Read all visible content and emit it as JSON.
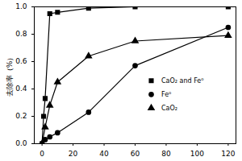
{
  "chart_data": {
    "type": "line",
    "y_label": "去除率（%）",
    "xlim": [
      -5,
      125
    ],
    "xticks": [
      0,
      20,
      40,
      60,
      80,
      100,
      120
    ],
    "ylim": [
      0,
      1.0
    ],
    "yticks": [
      {
        "value": 0,
        "label": "0.0"
      },
      0.2,
      0.4,
      0.6,
      0.8,
      {
        "value": 1,
        "label": "1.0"
      }
    ],
    "legend": "center right",
    "series": [
      {
        "name": "CaO₂ and Fe⁰",
        "color": "#000000",
        "marker": "square",
        "x": [
          0,
          1,
          2,
          5,
          10,
          30,
          60,
          120
        ],
        "values": [
          0.0,
          0.2,
          0.33,
          0.95,
          0.96,
          0.99,
          1.0,
          1.0
        ]
      },
      {
        "name": "Fe⁰",
        "color": "#000000",
        "marker": "circle",
        "x": [
          0,
          2,
          5,
          10,
          30,
          60,
          120
        ],
        "values": [
          0.0,
          0.03,
          0.05,
          0.08,
          0.23,
          0.57,
          0.85
        ]
      },
      {
        "name": "CaO₂",
        "color": "#000000",
        "marker": "triangle",
        "x": [
          0,
          2,
          5,
          10,
          30,
          60,
          120
        ],
        "values": [
          0.0,
          0.12,
          0.28,
          0.45,
          0.64,
          0.75,
          0.79
        ]
      }
    ]
  }
}
